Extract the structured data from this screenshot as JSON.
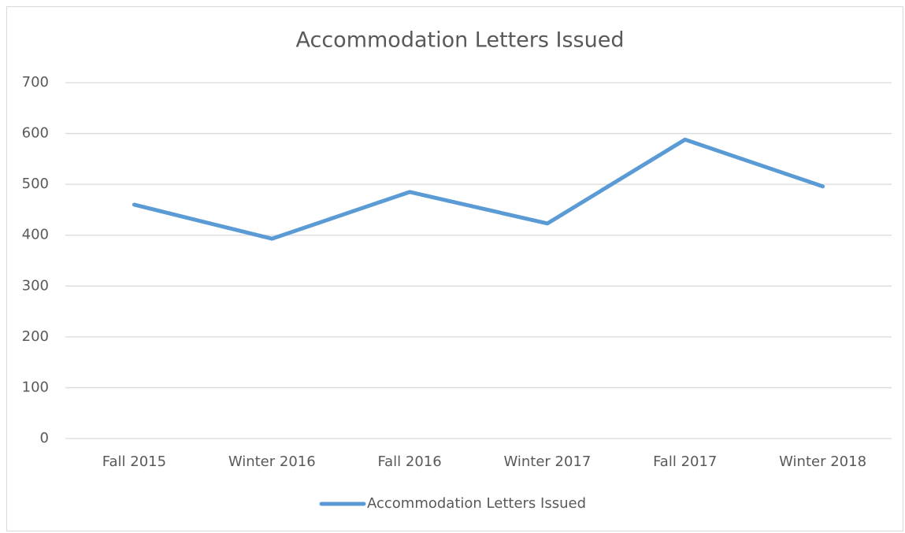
{
  "chart_data": {
    "type": "line",
    "title": "Accommodation Letters Issued",
    "categories": [
      "Fall 2015",
      "Winter 2016",
      "Fall 2016",
      "Winter 2017",
      "Fall 2017",
      "Winter 2018"
    ],
    "series": [
      {
        "name": "Accommodation Letters Issued",
        "color": "#5b9bd5",
        "values": [
          460,
          393,
          485,
          423,
          588,
          496
        ]
      }
    ],
    "ylim": [
      0,
      700
    ],
    "yticks": [
      0,
      100,
      200,
      300,
      400,
      500,
      600,
      700
    ],
    "grid": true,
    "legend": "bottom"
  }
}
